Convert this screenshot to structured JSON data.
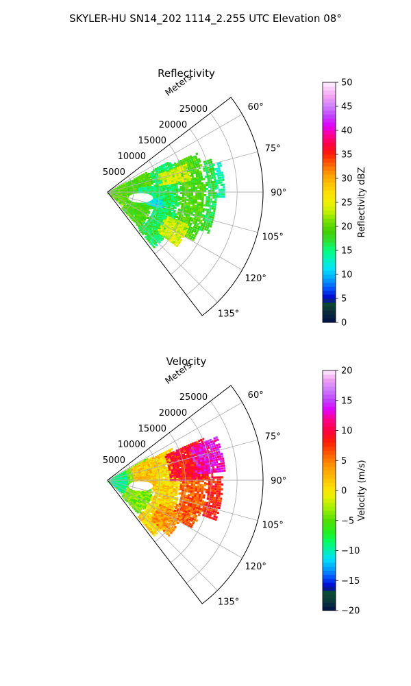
{
  "figure": {
    "suptitle": "SKYLER-HU  SN14_202  1114_2.255 UTC Elevation 08°"
  },
  "chart_data": [
    {
      "type": "heatmap",
      "projection": "polar-sector",
      "title": "Reflectivity",
      "radial_axis_label": "Meters",
      "radial_ticks": [
        5000,
        10000,
        15000,
        20000,
        25000
      ],
      "radial_tick_labels": [
        "5000",
        "10000",
        "15000",
        "20000",
        "25000"
      ],
      "rmax": 30000,
      "theta_range_deg": [
        52.5,
        142.5
      ],
      "theta_ticks_deg": [
        60,
        75,
        90,
        105,
        120,
        135
      ],
      "theta_tick_labels": [
        "60°",
        "75°",
        "90°",
        "105°",
        "120°",
        "135°"
      ],
      "grid": true,
      "colorbar": {
        "label": "Reflectivity dBZ",
        "range": [
          0,
          50
        ],
        "ticks": [
          0,
          5,
          10,
          15,
          20,
          25,
          30,
          35,
          40,
          45,
          50
        ],
        "tick_labels": [
          "0",
          "5",
          "10",
          "15",
          "20",
          "25",
          "30",
          "35",
          "40",
          "45",
          "50"
        ],
        "stops": [
          {
            "v": 0,
            "c": "#00104a"
          },
          {
            "v": 2,
            "c": "#0a2a3a"
          },
          {
            "v": 4,
            "c": "#0b4a35"
          },
          {
            "v": 5,
            "c": "#0000c8"
          },
          {
            "v": 7,
            "c": "#0050ff"
          },
          {
            "v": 9,
            "c": "#00a0ff"
          },
          {
            "v": 11,
            "c": "#00e0ff"
          },
          {
            "v": 13,
            "c": "#00f2c0"
          },
          {
            "v": 15,
            "c": "#00ff80"
          },
          {
            "v": 17,
            "c": "#30e030"
          },
          {
            "v": 19,
            "c": "#40d000"
          },
          {
            "v": 21,
            "c": "#70e000"
          },
          {
            "v": 23,
            "c": "#c0f000"
          },
          {
            "v": 25,
            "c": "#f0f000"
          },
          {
            "v": 27,
            "c": "#ffe000"
          },
          {
            "v": 29,
            "c": "#ffc000"
          },
          {
            "v": 31,
            "c": "#ff9800"
          },
          {
            "v": 33,
            "c": "#ff6000"
          },
          {
            "v": 35,
            "c": "#ff2000"
          },
          {
            "v": 37,
            "c": "#ff0040"
          },
          {
            "v": 39,
            "c": "#ff0090"
          },
          {
            "v": 41,
            "c": "#e000ff"
          },
          {
            "v": 43,
            "c": "#c040ff"
          },
          {
            "v": 45,
            "c": "#d080ff"
          },
          {
            "v": 47,
            "c": "#f0a0f0"
          },
          {
            "v": 50,
            "c": "#fff0ff"
          }
        ]
      },
      "field_regions": [
        {
          "r": [
            0,
            4000
          ],
          "theta": [
            60,
            130
          ],
          "value": 20
        },
        {
          "r": [
            4000,
            9000
          ],
          "theta": [
            62,
            138
          ],
          "value": 19
        },
        {
          "r": [
            9000,
            14000
          ],
          "theta": [
            63,
            140
          ],
          "value": 16
        },
        {
          "r": [
            14000,
            19000
          ],
          "theta": [
            66,
            120
          ],
          "value": 19
        },
        {
          "r": [
            19000,
            21000
          ],
          "theta": [
            72,
            112
          ],
          "value": 17
        },
        {
          "r": [
            21000,
            22500
          ],
          "theta": [
            75,
            92
          ],
          "value": 14
        },
        {
          "r": [
            10000,
            16000
          ],
          "theta": [
            70,
            82
          ],
          "value": 24
        },
        {
          "r": [
            12000,
            17000
          ],
          "theta": [
            112,
            128
          ],
          "value": 24
        },
        {
          "r": [
            7000,
            11000
          ],
          "theta": [
            98,
            106
          ],
          "value": 12
        },
        {
          "r": [
            6000,
            9000
          ],
          "theta": [
            82,
            96
          ],
          "value": 15
        }
      ]
    },
    {
      "type": "heatmap",
      "projection": "polar-sector",
      "title": "Velocity",
      "radial_axis_label": "Meters",
      "radial_ticks": [
        5000,
        10000,
        15000,
        20000,
        25000
      ],
      "radial_tick_labels": [
        "5000",
        "10000",
        "15000",
        "20000",
        "25000"
      ],
      "rmax": 30000,
      "theta_range_deg": [
        52.5,
        142.5
      ],
      "theta_ticks_deg": [
        60,
        75,
        90,
        105,
        120,
        135
      ],
      "theta_tick_labels": [
        "60°",
        "75°",
        "90°",
        "105°",
        "120°",
        "135°"
      ],
      "grid": true,
      "colorbar": {
        "label": "Velocity (m/s)",
        "range": [
          -20,
          20
        ],
        "ticks": [
          -20,
          -15,
          -10,
          -5,
          0,
          5,
          10,
          15,
          20
        ],
        "tick_labels": [
          "−20",
          "−15",
          "−10",
          "−5",
          "0",
          "5",
          "10",
          "15",
          "20"
        ],
        "stops": [
          {
            "v": -20,
            "c": "#00104a"
          },
          {
            "v": -18.5,
            "c": "#0a3a3a"
          },
          {
            "v": -17,
            "c": "#0b4a35"
          },
          {
            "v": -16,
            "c": "#0000c8"
          },
          {
            "v": -14.5,
            "c": "#0050ff"
          },
          {
            "v": -13,
            "c": "#00a0ff"
          },
          {
            "v": -11.5,
            "c": "#00e0ff"
          },
          {
            "v": -10,
            "c": "#00f0b0"
          },
          {
            "v": -8.5,
            "c": "#00ff60"
          },
          {
            "v": -7,
            "c": "#20f020"
          },
          {
            "v": -5,
            "c": "#50e000"
          },
          {
            "v": -3,
            "c": "#a0f000"
          },
          {
            "v": -1,
            "c": "#e8f000"
          },
          {
            "v": 0.5,
            "c": "#ffe000"
          },
          {
            "v": 2,
            "c": "#ffc000"
          },
          {
            "v": 4,
            "c": "#ff9800"
          },
          {
            "v": 6,
            "c": "#ff6000"
          },
          {
            "v": 8,
            "c": "#ff2000"
          },
          {
            "v": 10,
            "c": "#ff0040"
          },
          {
            "v": 12,
            "c": "#ff0090"
          },
          {
            "v": 13.5,
            "c": "#e000ff"
          },
          {
            "v": 15,
            "c": "#c040ff"
          },
          {
            "v": 17,
            "c": "#d080ff"
          },
          {
            "v": 18.5,
            "c": "#f0a0f0"
          },
          {
            "v": 20,
            "c": "#fff0ff"
          }
        ]
      },
      "field_regions": [
        {
          "r": [
            0,
            4000
          ],
          "theta": [
            60,
            130
          ],
          "value": -9
        },
        {
          "r": [
            4000,
            9000
          ],
          "theta": [
            60,
            138
          ],
          "value": -4
        },
        {
          "r": [
            5000,
            10000
          ],
          "theta": [
            62,
            100
          ],
          "value": 2
        },
        {
          "r": [
            9000,
            14000
          ],
          "theta": [
            63,
            140
          ],
          "value": 1
        },
        {
          "r": [
            14000,
            19000
          ],
          "theta": [
            66,
            120
          ],
          "value": 6
        },
        {
          "r": [
            12000,
            20000
          ],
          "theta": [
            66,
            90
          ],
          "value": 9
        },
        {
          "r": [
            17000,
            22500
          ],
          "theta": [
            68,
            85
          ],
          "value": 13
        },
        {
          "r": [
            19000,
            22000
          ],
          "theta": [
            88,
            110
          ],
          "value": 8
        },
        {
          "r": [
            11000,
            16000
          ],
          "theta": [
            115,
            132
          ],
          "value": 4
        }
      ]
    }
  ]
}
